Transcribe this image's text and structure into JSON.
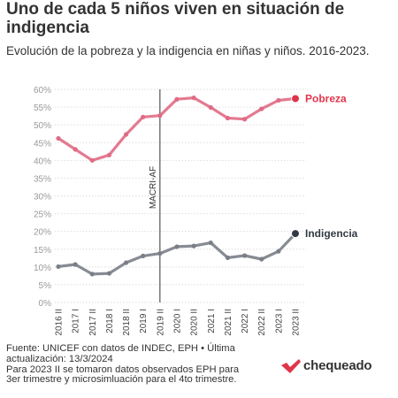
{
  "title": "Uno de cada 5 niños viven en situación de indigencia",
  "subtitle": "Evolución de la pobreza y la indigencia en niñas y niños. 2016-2023.",
  "footer": {
    "line1": "Fuente: UNICEF con datos de INDEC, EPH • Última",
    "line2": "actualización: 13/3/2024",
    "line3": "Para 2023 II se tomaron datos observados EPH para",
    "line4": "3er trimestre y microsimluación para el 4to trimestre."
  },
  "logo": {
    "text": "chequeado",
    "color": "#e0344a"
  },
  "chart_data": {
    "type": "line",
    "categories": [
      "2016 II",
      "2017 I",
      "2017 II",
      "2018 I",
      "2018 II",
      "2019 I",
      "2019 II",
      "2020 I",
      "2020 II",
      "2021 I",
      "2021 II",
      "2022 I",
      "2022 II",
      "2023 I",
      "2023 II"
    ],
    "ylim": [
      0,
      60
    ],
    "yticks": [
      "0%",
      "5%",
      "10%",
      "15%",
      "20%",
      "25%",
      "30%",
      "35%",
      "40%",
      "45%",
      "50%",
      "55%",
      "60%"
    ],
    "grid": true,
    "series": [
      {
        "name": "Pobreza",
        "color": "#e06b85",
        "end_color": "#e0344a",
        "values": [
          46.2,
          43.1,
          40.0,
          41.5,
          47.3,
          52.2,
          52.6,
          57.2,
          57.6,
          54.9,
          51.9,
          51.6,
          54.5,
          56.9,
          57.4
        ]
      },
      {
        "name": "Indigencia",
        "color": "#7a7f87",
        "end_color": "#333a45",
        "values": [
          10.1,
          10.7,
          8.0,
          8.2,
          11.2,
          13.1,
          13.8,
          15.7,
          15.9,
          16.8,
          12.6,
          13.2,
          12.2,
          14.4,
          19.4
        ]
      }
    ],
    "annotations": [
      {
        "label": "MACRI-AF",
        "at": "2019 II"
      }
    ]
  }
}
